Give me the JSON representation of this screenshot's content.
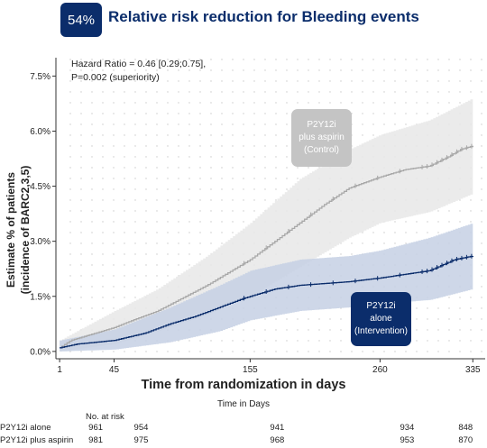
{
  "header": {
    "badge": "54%",
    "title": "Relative risk reduction  for Bleeding events"
  },
  "annotation": {
    "line1": "Hazard Ratio = 0.46 [0.29;0.75],",
    "line2": "P=0.002 (superiority)"
  },
  "labels": {
    "control": [
      "P2Y12i",
      "plus aspirin",
      "(Control)"
    ],
    "intervention": [
      "P2Y12i",
      "alone",
      "(Intervention)"
    ]
  },
  "chart_data": {
    "type": "line",
    "xlabel": "Time from randomization in days",
    "ylabel": [
      "Estimate % of patients",
      "(incidence of BARC2,3,5)"
    ],
    "xticks": [
      1,
      45,
      155,
      260,
      335
    ],
    "yticks": [
      0,
      1.5,
      3.0,
      4.5,
      6.0,
      7.5
    ],
    "ytick_labels": [
      "0.0%",
      "1.5%",
      "3.0%",
      "4.5%",
      "6.0%",
      "7.5%"
    ],
    "xlim": [
      -2,
      345
    ],
    "ylim": [
      -0.2,
      8.0
    ],
    "series": [
      {
        "name": "P2Y12i plus aspirin",
        "color": "#a8a8a8",
        "band_color": "#e8e8e8",
        "points": [
          [
            1,
            0.1
          ],
          [
            10,
            0.3
          ],
          [
            25,
            0.45
          ],
          [
            45,
            0.65
          ],
          [
            60,
            0.85
          ],
          [
            80,
            1.1
          ],
          [
            100,
            1.45
          ],
          [
            120,
            1.8
          ],
          [
            140,
            2.2
          ],
          [
            155,
            2.5
          ],
          [
            175,
            3.0
          ],
          [
            195,
            3.5
          ],
          [
            215,
            4.0
          ],
          [
            235,
            4.45
          ],
          [
            260,
            4.75
          ],
          [
            280,
            4.95
          ],
          [
            300,
            5.05
          ],
          [
            315,
            5.3
          ],
          [
            325,
            5.5
          ],
          [
            335,
            5.6
          ]
        ],
        "lower": [
          [
            1,
            0.0
          ],
          [
            45,
            0.2
          ],
          [
            80,
            0.55
          ],
          [
            120,
            1.0
          ],
          [
            155,
            1.5
          ],
          [
            195,
            2.3
          ],
          [
            235,
            3.1
          ],
          [
            260,
            3.5
          ],
          [
            300,
            3.8
          ],
          [
            335,
            4.3
          ]
        ],
        "upper": [
          [
            1,
            0.3
          ],
          [
            45,
            1.1
          ],
          [
            80,
            1.7
          ],
          [
            120,
            2.6
          ],
          [
            155,
            3.5
          ],
          [
            195,
            4.7
          ],
          [
            235,
            5.5
          ],
          [
            260,
            5.9
          ],
          [
            300,
            6.3
          ],
          [
            335,
            6.9
          ]
        ]
      },
      {
        "name": "P2Y12i alone",
        "color": "#0b2d6b",
        "band_color": "#c6d0e4",
        "points": [
          [
            1,
            0.1
          ],
          [
            15,
            0.2
          ],
          [
            45,
            0.3
          ],
          [
            70,
            0.5
          ],
          [
            90,
            0.75
          ],
          [
            110,
            0.95
          ],
          [
            130,
            1.2
          ],
          [
            150,
            1.45
          ],
          [
            155,
            1.5
          ],
          [
            175,
            1.7
          ],
          [
            195,
            1.8
          ],
          [
            215,
            1.85
          ],
          [
            235,
            1.9
          ],
          [
            260,
            2.0
          ],
          [
            280,
            2.1
          ],
          [
            300,
            2.2
          ],
          [
            310,
            2.35
          ],
          [
            320,
            2.5
          ],
          [
            335,
            2.6
          ]
        ],
        "lower": [
          [
            1,
            0.0
          ],
          [
            45,
            0.05
          ],
          [
            90,
            0.25
          ],
          [
            130,
            0.55
          ],
          [
            155,
            0.85
          ],
          [
            195,
            1.1
          ],
          [
            235,
            1.2
          ],
          [
            260,
            1.3
          ],
          [
            300,
            1.4
          ],
          [
            335,
            1.7
          ]
        ],
        "upper": [
          [
            1,
            0.3
          ],
          [
            45,
            0.6
          ],
          [
            90,
            1.2
          ],
          [
            130,
            1.8
          ],
          [
            155,
            2.2
          ],
          [
            195,
            2.5
          ],
          [
            235,
            2.6
          ],
          [
            260,
            2.75
          ],
          [
            300,
            3.1
          ],
          [
            335,
            3.5
          ]
        ]
      }
    ],
    "grid": true
  },
  "risk_table": {
    "time_label": "Time in Days",
    "no_at_risk_label": "No. at risk",
    "x_positions": [
      1,
      45,
      155,
      260,
      335
    ],
    "rows": [
      {
        "label": "P2Y12i alone",
        "values": [
          "961",
          "954",
          "941",
          "934",
          "848"
        ]
      },
      {
        "label": "P2Y12i plus aspirin",
        "values": [
          "981",
          "975",
          "968",
          "953",
          "870"
        ]
      }
    ]
  }
}
